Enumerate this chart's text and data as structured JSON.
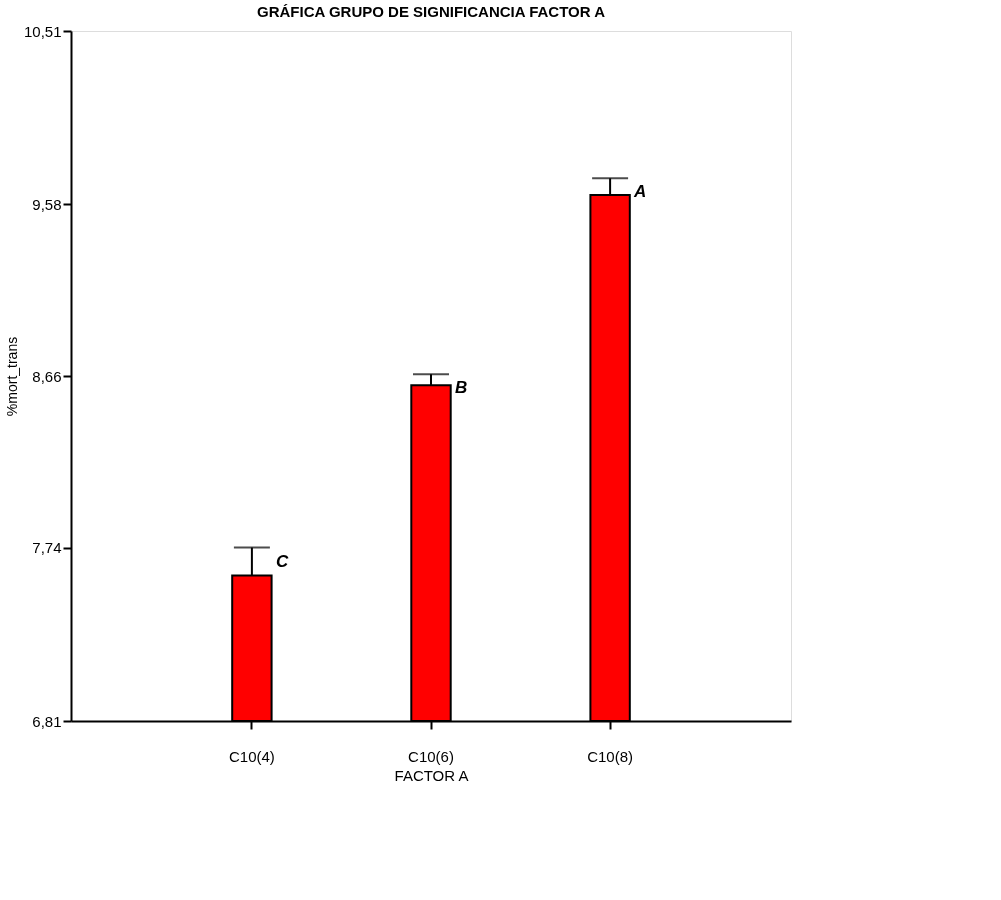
{
  "chart_data": {
    "type": "bar",
    "title": "GRÁFICA GRUPO DE SIGNIFICANCIA FACTOR A",
    "xlabel": "FACTOR A",
    "ylabel": "%mort_trans",
    "categories": [
      "C10(4)",
      "C10(6)",
      "C10(8)"
    ],
    "series": [
      {
        "color": "#ff0000",
        "values": [
          7.59,
          8.61,
          9.63
        ],
        "errors": [
          [
            7.59,
            7.74
          ],
          [
            8.61,
            8.67
          ],
          [
            9.63,
            9.72
          ]
        ]
      }
    ],
    "ylim": [
      6.81,
      10.51
    ],
    "yticks": [
      {
        "value": 6.81,
        "label": "6,81"
      },
      {
        "value": 7.74,
        "label": "7,74"
      },
      {
        "value": 8.66,
        "label": "8,66"
      },
      {
        "value": 9.58,
        "label": "9,58"
      },
      {
        "value": 10.51,
        "label": "10,51"
      }
    ],
    "annotations": [
      "C",
      "B",
      "A"
    ],
    "grid": false
  }
}
